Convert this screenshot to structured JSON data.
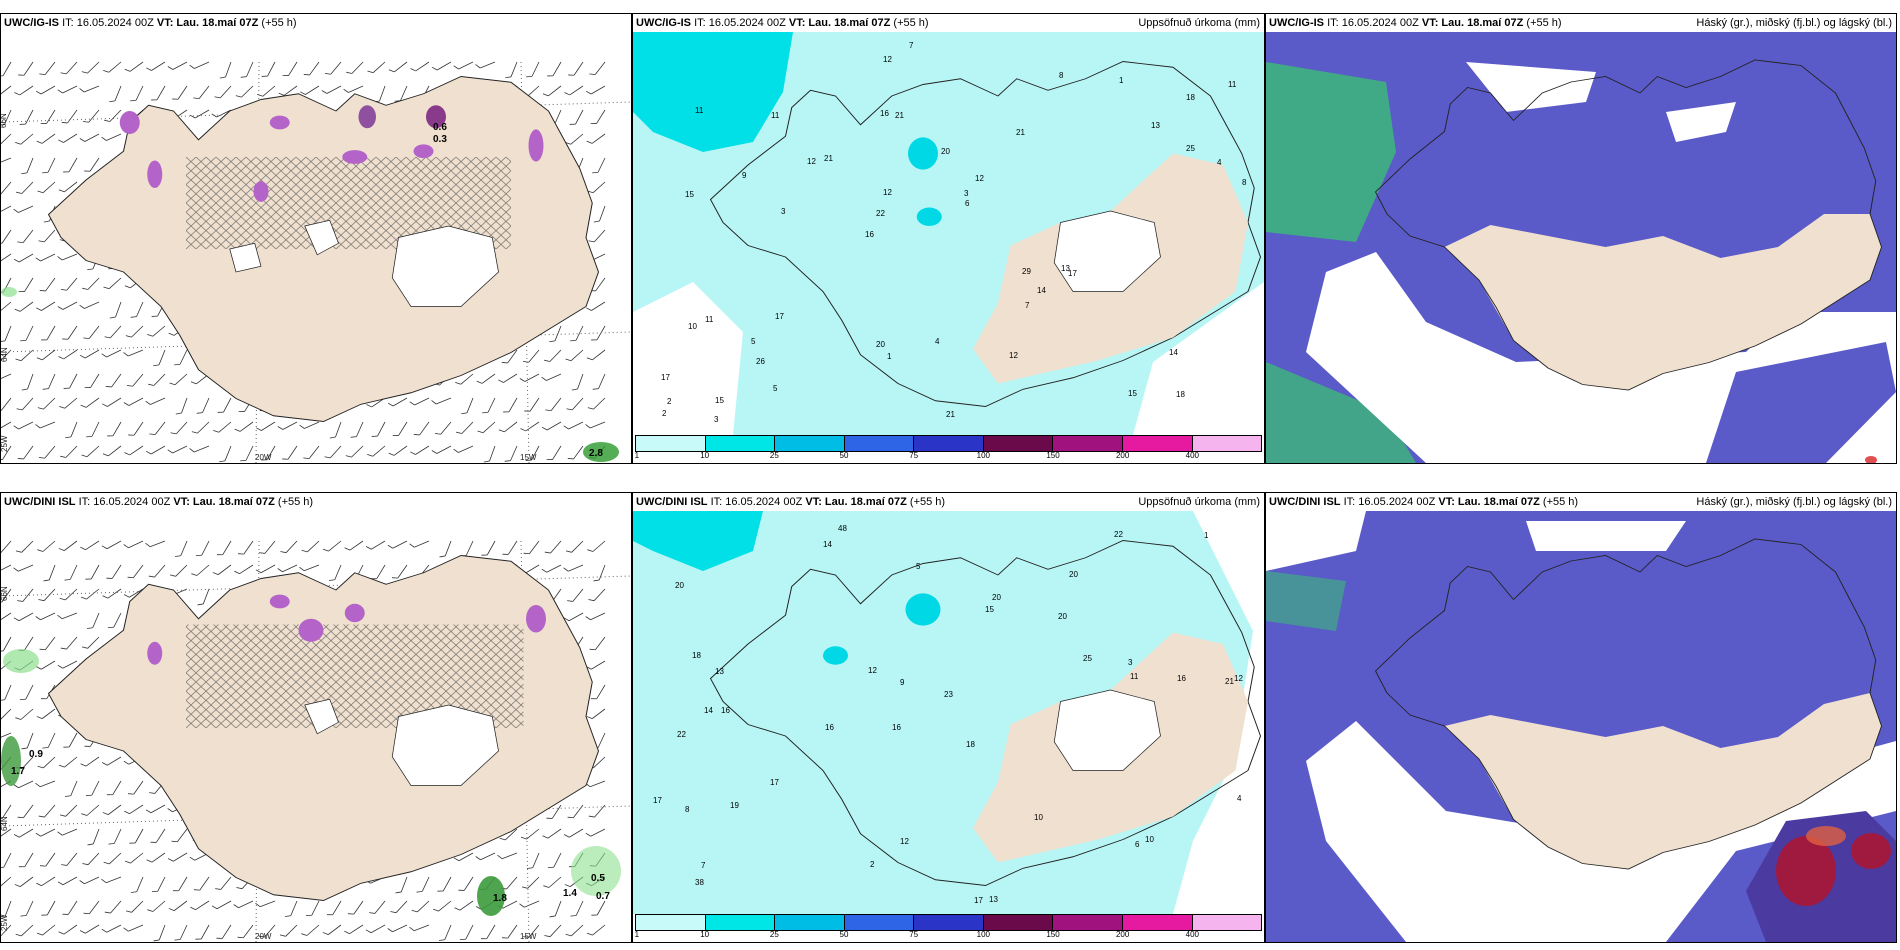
{
  "panels": {
    "p1": {
      "model": "UWC/IG-IS",
      "it": "IT: 16.05.2024 00Z",
      "vt": "VT: Lau. 18.maí 07Z",
      "lead": "(+55 h)",
      "right": ""
    },
    "p2": {
      "model": "UWC/IG-IS",
      "it": "IT: 16.05.2024 00Z",
      "vt": "VT: Lau. 18.maí 07Z",
      "lead": "(+55 h)",
      "right": "Uppsöfnuð úrkoma (mm)"
    },
    "p3": {
      "model": "UWC/IG-IS",
      "it": "IT: 16.05.2024 00Z",
      "vt": "VT: Lau. 18.maí 07Z",
      "lead": "(+55 h)",
      "right": "Háský (gr.), miðský (fj.bl.) og lágský (bl.)"
    },
    "p4": {
      "model": "UWC/DINI ISL",
      "it": "IT: 16.05.2024 00Z",
      "vt": "VT: Lau. 18.maí 07Z",
      "lead": "(+55 h)",
      "right": ""
    },
    "p5": {
      "model": "UWC/DINI ISL",
      "it": "IT: 16.05.2024 00Z",
      "vt": "VT: Lau. 18.maí 07Z",
      "lead": "(+55 h)",
      "right": "Uppsöfnuð úrkoma (mm)"
    },
    "p6": {
      "model": "UWC/DINI ISL",
      "it": "IT: 16.05.2024 00Z",
      "vt": "VT: Lau. 18.maí 07Z",
      "lead": "(+55 h)",
      "right": "Háský (gr.), miðský (fj.bl.) og lágský (bl.)"
    }
  },
  "axes": {
    "lat66": "66N",
    "lat64": "64N",
    "lon25": "25W",
    "lon20": "20W",
    "lon15": "15W"
  },
  "colorbar": {
    "ticks": [
      "1",
      "10",
      "25",
      "50",
      "75",
      "100",
      "150",
      "200",
      "400"
    ],
    "colors": [
      "#c8fafa",
      "#00e6e6",
      "#00bde6",
      "#2e64e6",
      "#2a35c8",
      "#6b0a4a",
      "#a0127e",
      "#e61aa0",
      "#f5b4ee"
    ]
  },
  "precip_values_top": [
    "18",
    "15",
    "18",
    "16",
    "21",
    "15",
    "16",
    "20",
    "11",
    "21",
    "17",
    "26",
    "21",
    "12",
    "17",
    "11",
    "12",
    "8",
    "29",
    "25",
    "22",
    "20",
    "12",
    "11",
    "8",
    "17",
    "15",
    "14",
    "13",
    "21",
    "12",
    "9",
    "7",
    "5",
    "4",
    "3",
    "2",
    "1",
    "6",
    "10",
    "13",
    "11",
    "14",
    "12",
    "5",
    "3",
    "2",
    "4",
    "1",
    "7",
    "3"
  ],
  "precip_values_bottom": [
    "48",
    "20",
    "21",
    "16",
    "18",
    "16",
    "20",
    "20",
    "22",
    "15",
    "23",
    "38",
    "14",
    "16",
    "17",
    "13",
    "12",
    "22",
    "25",
    "17",
    "13",
    "14",
    "12",
    "16",
    "17",
    "18",
    "9",
    "11",
    "10",
    "8",
    "6",
    "20",
    "19",
    "12",
    "10",
    "4",
    "3",
    "2",
    "1",
    "5",
    "7"
  ],
  "marks_p1": [
    "0.6",
    "0.3",
    "2.8"
  ],
  "marks_p4": [
    "0.9",
    "1.7",
    "0.5",
    "1.8",
    "1.4",
    "0.7"
  ],
  "colors": {
    "land": "#efe0cf",
    "precip_light": "#b8f6f6",
    "cloud_low": "#5a5ac8",
    "cloud_mid": "#4b82e6",
    "cloud_high": "#3cb87a",
    "snow_purple": "#b464c8"
  }
}
